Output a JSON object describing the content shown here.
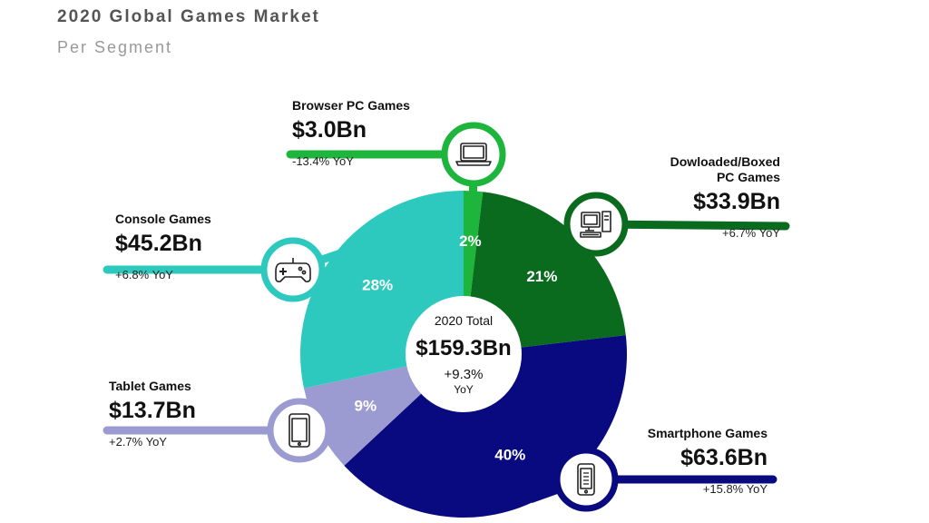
{
  "title": "2020 Global Games Market",
  "subtitle": "Per Segment",
  "center": {
    "label": "2020 Total",
    "value": "$159.3Bn",
    "growth": "+9.3%",
    "growth_unit": "YoY"
  },
  "chart_data": {
    "type": "pie",
    "title": "2020 Global Games Market",
    "subtitle": "Per Segment",
    "total": "$159.3Bn",
    "total_growth": "+9.3% YoY",
    "slices": [
      {
        "name": "Browser PC Games",
        "value_label": "$3.0Bn",
        "value": 3.0,
        "percent": 2,
        "percent_label": "2%",
        "yoy": "-13.4% YoY",
        "color": "#1db53c",
        "icon": "laptop-icon"
      },
      {
        "name": "Dowloaded/Boxed PC Games",
        "name_line1": "Dowloaded/Boxed",
        "name_line2": "PC Games",
        "value_label": "$33.9Bn",
        "value": 33.9,
        "percent": 21,
        "percent_label": "21%",
        "yoy": "+6.7% YoY",
        "color": "#0a6b1e",
        "icon": "desktop-pc-icon"
      },
      {
        "name": "Smartphone Games",
        "value_label": "$63.6Bn",
        "value": 63.6,
        "percent": 40,
        "percent_label": "40%",
        "yoy": "+15.8% YoY",
        "color": "#0a0a80",
        "icon": "smartphone-icon"
      },
      {
        "name": "Tablet Games",
        "value_label": "$13.7Bn",
        "value": 13.7,
        "percent": 9,
        "percent_label": "9%",
        "yoy": "+2.7% YoY",
        "color": "#9b9bd2",
        "icon": "tablet-icon"
      },
      {
        "name": "Console Games",
        "value_label": "$45.2Bn",
        "value": 45.2,
        "percent": 28,
        "percent_label": "28%",
        "yoy": "+6.8% YoY",
        "color": "#2ec9be",
        "icon": "gamepad-icon"
      }
    ]
  }
}
